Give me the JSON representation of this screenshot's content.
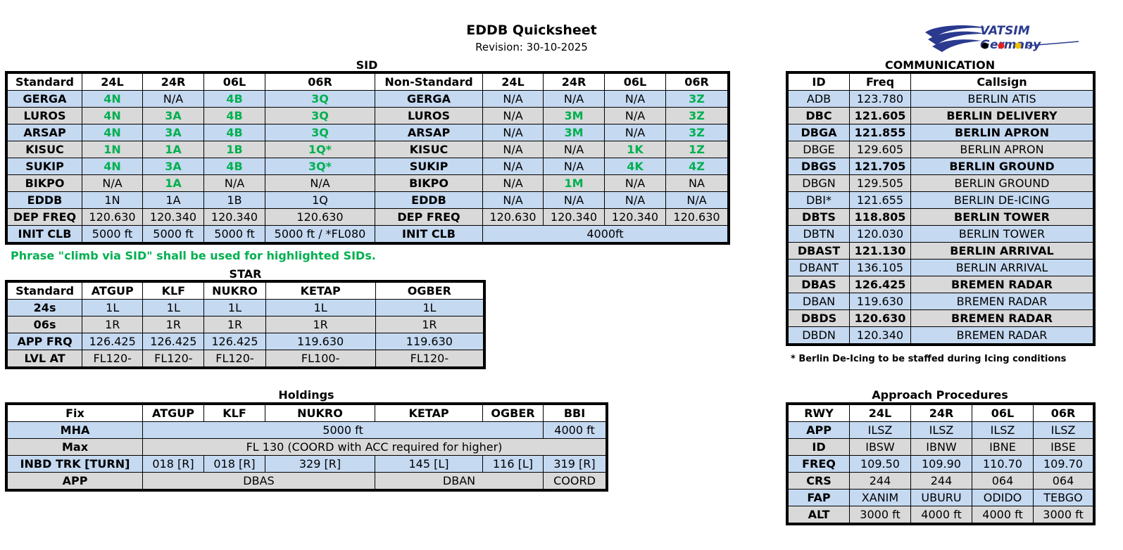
{
  "header": {
    "title": "EDDB Quicksheet",
    "revision": "Revision: 30-10-2025",
    "logo_text": "VATSIM Germany"
  },
  "sid": {
    "caption": "SID",
    "headers": [
      "Standard",
      "24L",
      "24R",
      "06L",
      "06R",
      "Non-Standard",
      "24L",
      "24R",
      "06L",
      "06R"
    ],
    "rows": [
      {
        "name": "GERGA",
        "std": [
          "4N",
          "N/A",
          "4B",
          "3Q"
        ],
        "ns_name": "GERGA",
        "ns": [
          "N/A",
          "N/A",
          "N/A",
          "3Z"
        ]
      },
      {
        "name": "LUROS",
        "std": [
          "4N",
          "3A",
          "4B",
          "3Q"
        ],
        "ns_name": "LUROS",
        "ns": [
          "N/A",
          "3M",
          "N/A",
          "3Z"
        ]
      },
      {
        "name": "ARSAP",
        "std": [
          "4N",
          "3A",
          "4B",
          "3Q"
        ],
        "ns_name": "ARSAP",
        "ns": [
          "N/A",
          "3M",
          "N/A",
          "3Z"
        ]
      },
      {
        "name": "KISUC",
        "std": [
          "1N",
          "1A",
          "1B",
          "1Q*"
        ],
        "ns_name": "KISUC",
        "ns": [
          "N/A",
          "N/A",
          "1K",
          "1Z"
        ]
      },
      {
        "name": "SUKIP",
        "std": [
          "4N",
          "3A",
          "4B",
          "3Q*"
        ],
        "ns_name": "SUKIP",
        "ns": [
          "N/A",
          "N/A",
          "4K",
          "4Z"
        ]
      },
      {
        "name": "BIKPO",
        "std": [
          "N/A",
          "1A",
          "N/A",
          "N/A"
        ],
        "ns_name": "BIKPO",
        "ns": [
          "N/A",
          "1M",
          "N/A",
          "NA"
        ]
      },
      {
        "name": "EDDB",
        "std": [
          "1N",
          "1A",
          "1B",
          "1Q"
        ],
        "ns_name": "EDDB",
        "ns": [
          "N/A",
          "N/A",
          "N/A",
          "N/A"
        ]
      },
      {
        "name": "DEP FREQ",
        "std": [
          "120.630",
          "120.340",
          "120.340",
          "120.630"
        ],
        "ns_name": "DEP FREQ",
        "ns": [
          "120.630",
          "120.340",
          "120.340",
          "120.630"
        ]
      }
    ],
    "init_clb": {
      "label": "INIT CLB",
      "std": [
        "5000 ft",
        "5000 ft",
        "5000 ft",
        "5000 ft / *FL080"
      ],
      "ns_label": "INIT CLB",
      "ns": "4000ft"
    },
    "note": "Phrase \"climb via SID\" shall be used for highlighted SIDs.",
    "highlight_color": "#00b050"
  },
  "star": {
    "caption": "STAR",
    "headers": [
      "Standard",
      "ATGUP",
      "KLF",
      "NUKRO",
      "KETAP",
      "OGBER"
    ],
    "rows": [
      {
        "label": "24s",
        "values": [
          "1L",
          "1L",
          "1L",
          "1L",
          "1L"
        ]
      },
      {
        "label": "06s",
        "values": [
          "1R",
          "1R",
          "1R",
          "1R",
          "1R"
        ]
      },
      {
        "label": "APP FRQ",
        "values": [
          "126.425",
          "126.425",
          "126.425",
          "119.630",
          "119.630"
        ]
      },
      {
        "label": "LVL AT",
        "values": [
          "FL120-",
          "FL120-",
          "FL120-",
          "FL100-",
          "FL120-"
        ]
      }
    ]
  },
  "holdings": {
    "caption": "Holdings",
    "headers": [
      "Fix",
      "ATGUP",
      "KLF",
      "NUKRO",
      "KETAP",
      "OGBER",
      "BBI"
    ],
    "mha": {
      "label": "MHA",
      "main": "5000 ft",
      "bbi": "4000 ft"
    },
    "max": {
      "label": "Max",
      "value": "FL 130 (COORD with ACC required for higher)"
    },
    "inbd": {
      "label": "INBD TRK [TURN]",
      "values": [
        "018 [R]",
        "018 [R]",
        "329 [R]",
        "145 [L]",
        "116 [L]",
        "319 [R]"
      ]
    },
    "app": {
      "label": "APP",
      "values": [
        "DBAS",
        "DBAN",
        "COORD"
      ]
    }
  },
  "communication": {
    "caption": "COMMUNICATION",
    "headers": [
      "ID",
      "Freq",
      "Callsign"
    ],
    "rows": [
      {
        "id": "ADB",
        "freq": "123.780",
        "callsign": "BERLIN ATIS",
        "bold": false
      },
      {
        "id": "DBC",
        "freq": "121.605",
        "callsign": "BERLIN DELIVERY",
        "bold": true
      },
      {
        "id": "DBGA",
        "freq": "121.855",
        "callsign": "BERLIN APRON",
        "bold": true
      },
      {
        "id": "DBGE",
        "freq": "129.605",
        "callsign": "BERLIN APRON",
        "bold": false
      },
      {
        "id": "DBGS",
        "freq": "121.705",
        "callsign": "BERLIN GROUND",
        "bold": true
      },
      {
        "id": "DBGN",
        "freq": "129.505",
        "callsign": "BERLIN GROUND",
        "bold": false
      },
      {
        "id": "DBI*",
        "freq": "121.655",
        "callsign": "BERLIN DE-ICING",
        "bold": false
      },
      {
        "id": "DBTS",
        "freq": "118.805",
        "callsign": "BERLIN TOWER",
        "bold": true
      },
      {
        "id": "DBTN",
        "freq": "120.030",
        "callsign": "BERLIN TOWER",
        "bold": false
      },
      {
        "id": "DBAST",
        "freq": "121.130",
        "callsign": "BERLIN ARRIVAL",
        "bold": true
      },
      {
        "id": "DBANT",
        "freq": "136.105",
        "callsign": "BERLIN ARRIVAL",
        "bold": false
      },
      {
        "id": "DBAS",
        "freq": "126.425",
        "callsign": "BREMEN RADAR",
        "bold": true
      },
      {
        "id": "DBAN",
        "freq": "119.630",
        "callsign": "BREMEN RADAR",
        "bold": false
      },
      {
        "id": "DBDS",
        "freq": "120.630",
        "callsign": "BREMEN RADAR",
        "bold": true
      },
      {
        "id": "DBDN",
        "freq": "120.340",
        "callsign": "BREMEN RADAR",
        "bold": false
      }
    ],
    "footnote": "* Berlin De-Icing to be staffed during Icing conditions"
  },
  "approach": {
    "caption": "Approach Procedures",
    "headers": [
      "RWY",
      "24L",
      "24R",
      "06L",
      "06R"
    ],
    "rows": [
      {
        "label": "APP",
        "values": [
          "ILSZ",
          "ILSZ",
          "ILSZ",
          "ILSZ"
        ]
      },
      {
        "label": "ID",
        "values": [
          "IBSW",
          "IBNW",
          "IBNE",
          "IBSE"
        ]
      },
      {
        "label": "FREQ",
        "values": [
          "109.50",
          "109.90",
          "110.70",
          "109.70"
        ]
      },
      {
        "label": "CRS",
        "values": [
          "244",
          "244",
          "064",
          "064"
        ]
      },
      {
        "label": "FAP",
        "values": [
          "XANIM",
          "UBURU",
          "ODIDO",
          "TEBGO"
        ]
      },
      {
        "label": "ALT",
        "values": [
          "3000 ft",
          "4000 ft",
          "4000 ft",
          "3000 ft"
        ]
      }
    ]
  }
}
